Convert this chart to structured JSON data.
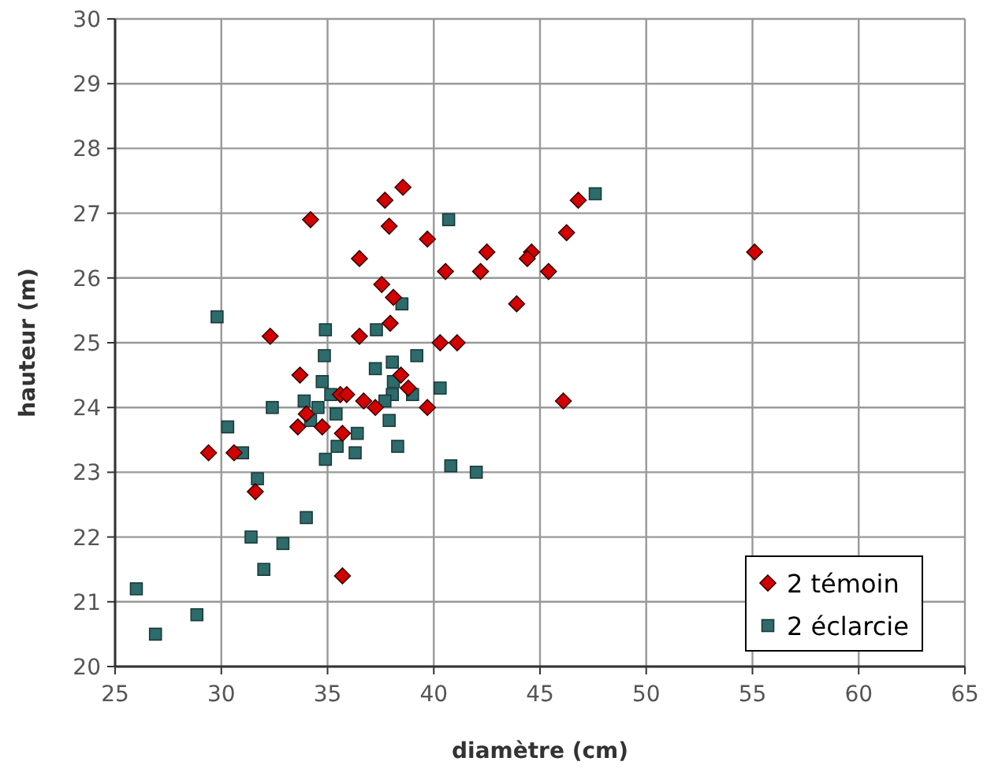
{
  "chart_data": {
    "type": "scatter",
    "xlabel": "diamètre (cm)",
    "ylabel": "hauteur (m)",
    "xlim": [
      25,
      65
    ],
    "ylim": [
      20,
      30
    ],
    "xticks": [
      25,
      30,
      35,
      40,
      45,
      50,
      55,
      60,
      65
    ],
    "yticks": [
      20,
      21,
      22,
      23,
      24,
      25,
      26,
      27,
      28,
      29,
      30
    ],
    "grid": true,
    "legend": "bottom right",
    "series": [
      {
        "name": "2 témoin",
        "color": "#d40000",
        "marker": "diamond",
        "x": [
          46.8,
          46.25,
          39.7,
          42.5,
          44.6,
          44.4,
          40.55,
          42.2,
          45.4,
          43.9,
          40.3,
          41.1,
          39.7,
          46.1,
          38.55,
          37.7,
          34.2,
          37.9,
          36.5,
          37.55,
          38.1,
          37.95,
          32.3,
          36.5,
          33.7,
          38.45,
          38.8,
          35.6,
          35.9,
          36.7,
          37.25,
          34.0,
          33.6,
          34.75,
          35.7,
          29.4,
          30.6,
          31.6,
          35.7,
          55.1
        ],
        "values": [
          27.2,
          26.7,
          26.6,
          26.4,
          26.4,
          26.3,
          26.1,
          26.1,
          26.1,
          25.6,
          25.0,
          25.0,
          24.0,
          24.1,
          27.4,
          27.2,
          26.9,
          26.8,
          26.3,
          25.9,
          25.7,
          25.3,
          25.1,
          25.1,
          24.5,
          24.5,
          24.3,
          24.2,
          24.2,
          24.1,
          24.0,
          23.9,
          23.7,
          23.7,
          23.6,
          23.3,
          23.3,
          22.7,
          21.4,
          26.4
        ]
      },
      {
        "name": "2 éclarcie",
        "color": "#2e6b6b",
        "marker": "square",
        "x": [
          29.8,
          34.9,
          37.3,
          38.5,
          34.85,
          39.2,
          37.25,
          38.05,
          34.75,
          38.1,
          39.0,
          35.15,
          38.05,
          33.9,
          32.4,
          34.55,
          37.7,
          35.4,
          34.2,
          37.9,
          30.3,
          36.4,
          35.45,
          38.3,
          36.3,
          31.0,
          34.9,
          47.6,
          40.7,
          40.3,
          40.8,
          42.0,
          31.7,
          34.0,
          31.4,
          32.9,
          32.0,
          26.0,
          28.85,
          26.9
        ],
        "values": [
          25.4,
          25.2,
          25.2,
          25.6,
          24.8,
          24.8,
          24.6,
          24.7,
          24.4,
          24.4,
          24.2,
          24.2,
          24.2,
          24.1,
          24.0,
          24.0,
          24.1,
          23.9,
          23.8,
          23.8,
          23.7,
          23.6,
          23.4,
          23.4,
          23.3,
          23.3,
          23.2,
          27.3,
          26.9,
          24.3,
          23.1,
          23.0,
          22.9,
          22.3,
          22.0,
          21.9,
          21.5,
          21.2,
          20.8,
          20.5
        ]
      }
    ]
  }
}
